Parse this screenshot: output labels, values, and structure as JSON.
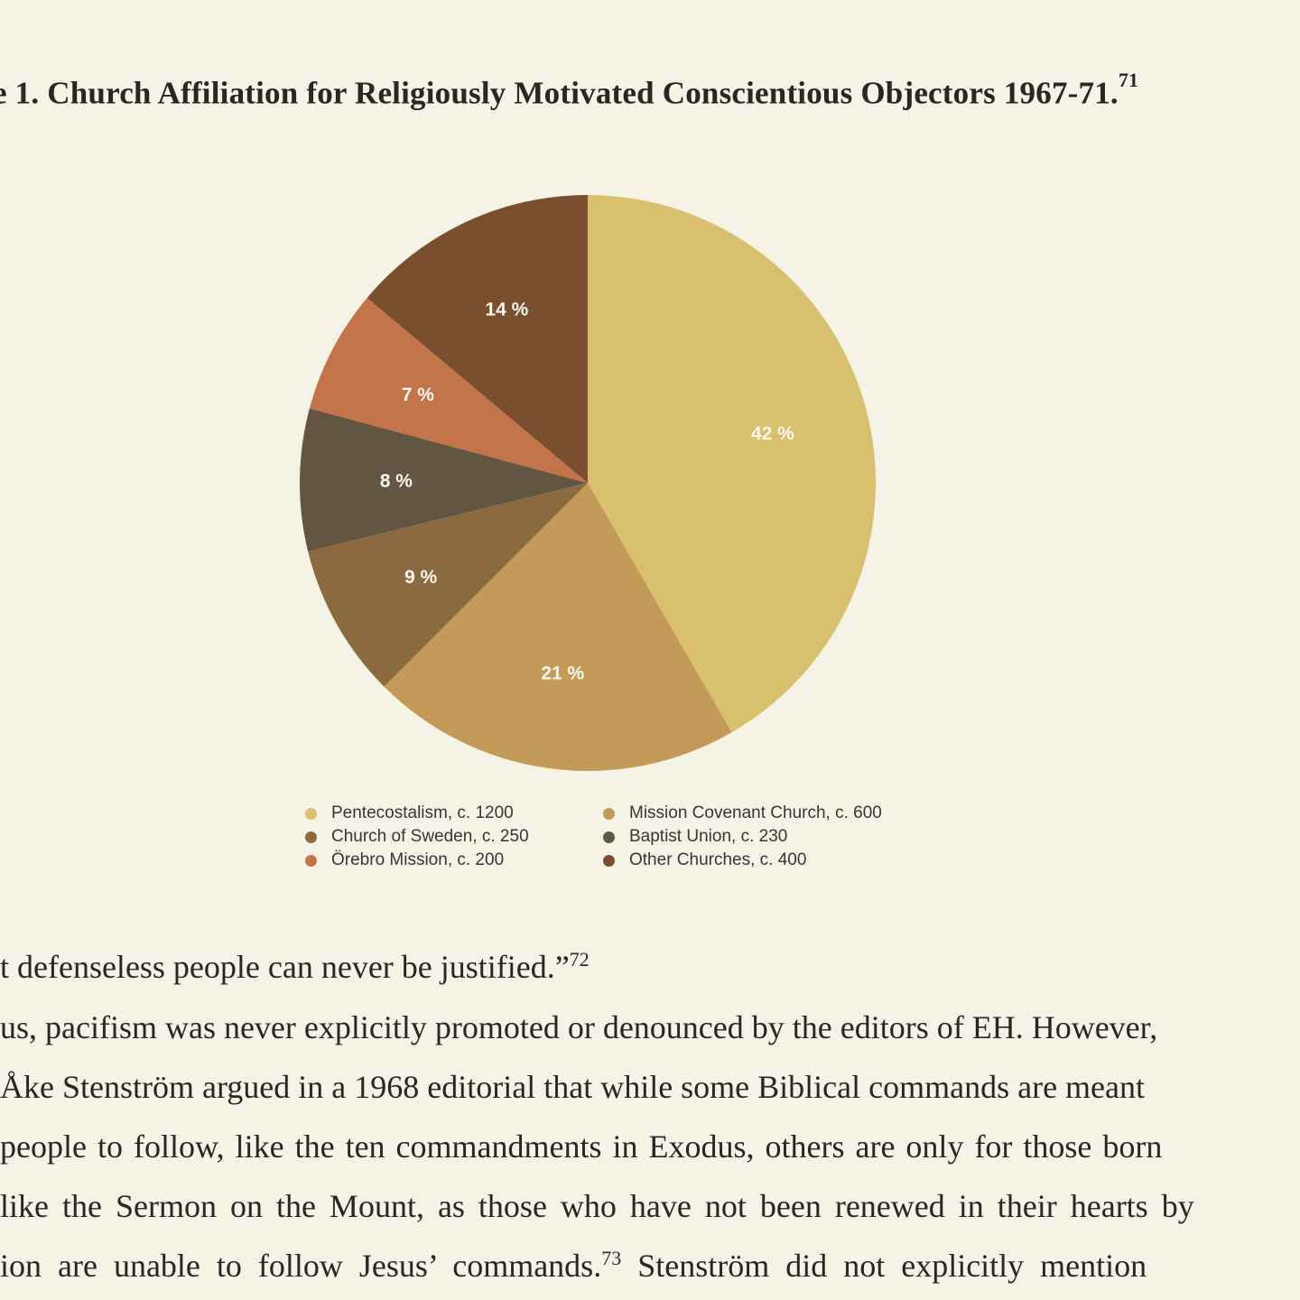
{
  "chart_data": {
    "type": "pie",
    "title": "e 1. Church Affiliation for Religiously Motivated Conscientious Objectors 1967-71.",
    "title_footnote": "71",
    "legend_position": "bottom",
    "slices": [
      {
        "name": "Pentecostalism",
        "legend": "Pentecostalism, c. 1200",
        "value": 1200,
        "percent": 42,
        "label": "42 %",
        "color": "#d9c06e"
      },
      {
        "name": "Mission Covenant Church",
        "legend": "Mission Covenant Church, c. 600",
        "value": 600,
        "percent": 21,
        "label": "21 %",
        "color": "#c49a58"
      },
      {
        "name": "Church of Sweden",
        "legend": "Church of Sweden, c. 250",
        "value": 250,
        "percent": 9,
        "label": "9 %",
        "color": "#8c6a40"
      },
      {
        "name": "Baptist Union",
        "legend": "Baptist Union, c. 230",
        "value": 230,
        "percent": 8,
        "label": "8 %",
        "color": "#625643"
      },
      {
        "name": "Örebro Mission",
        "legend": "Örebro Mission, c. 200",
        "value": 200,
        "percent": 7,
        "label": "7 %",
        "color": "#c4744a"
      },
      {
        "name": "Other Churches",
        "legend": "Other Churches, c. 400",
        "value": 400,
        "percent": 14,
        "label": "14 %",
        "color": "#7a4f30"
      }
    ],
    "legend_order": [
      0,
      1,
      2,
      3,
      4,
      5
    ]
  },
  "body_text": {
    "line1": "t defenseless people can never be justified.”",
    "line1_note": "72",
    "line2": "us, pacifism was never explicitly promoted or denounced by the editors of EH. However,",
    "line3": " Åke Stenström argued in a 1968 editorial that while some Biblical commands are meant",
    "line4": " people to follow, like the ten commandments in Exodus, others are only for those born",
    "line5": " like the Sermon on the Mount, as those who have not been renewed in their hearts by",
    "line6a": "ion  are  unable  to  follow  Jesus’  commands.",
    "line6_note": "73",
    "line6b": "  Stenström  did  not  explicitly  mention"
  }
}
